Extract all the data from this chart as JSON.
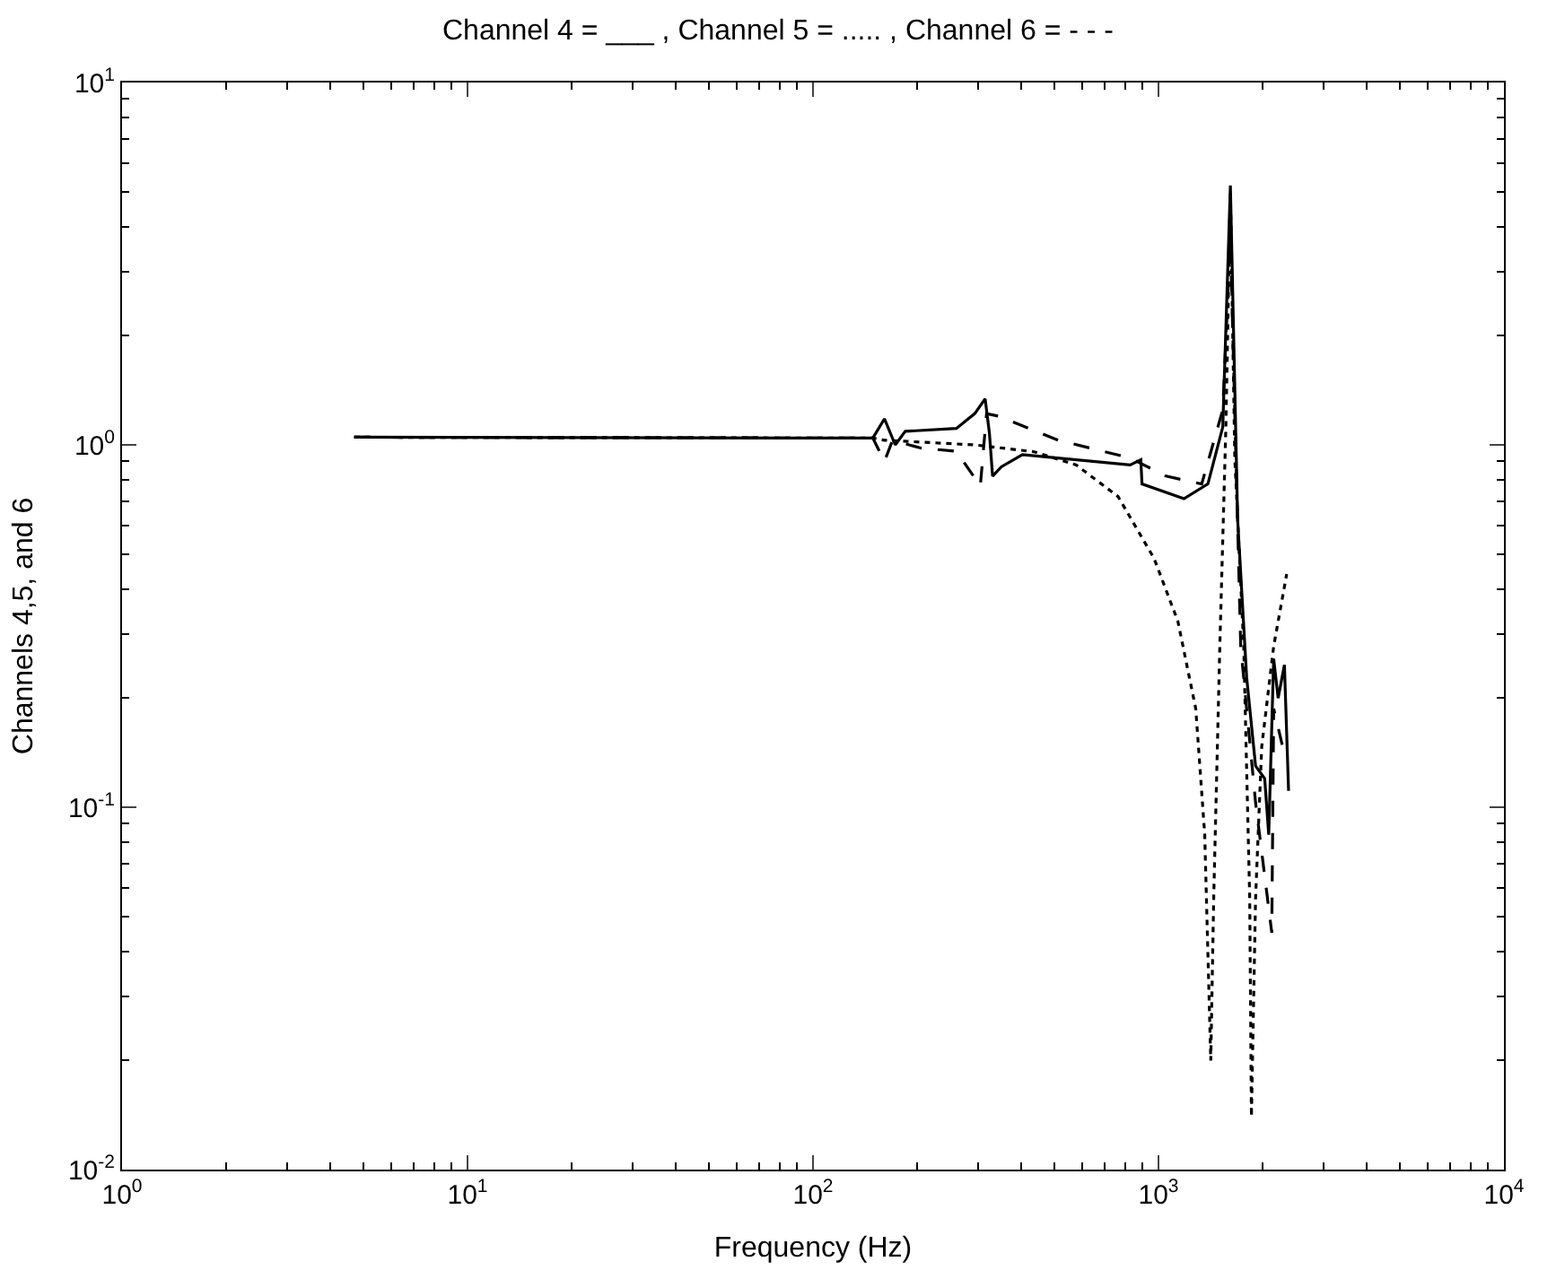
{
  "chart_data": {
    "type": "line",
    "title": "Channel 4 = ___ , Channel 5 = ..... , Channel 6 = - - -",
    "xlabel": "Frequency (Hz)",
    "ylabel": "Channels 4,5, and 6",
    "log": "xy",
    "grid": false,
    "marker": "none",
    "xlim": [
      1,
      10000
    ],
    "ylim": [
      0.01,
      10
    ],
    "xticks": [
      {
        "value": 1,
        "label": "10$^{0}$"
      },
      {
        "value": 10,
        "label": "10$^{1}$"
      },
      {
        "value": 100,
        "label": "10$^{2}$"
      },
      {
        "value": 1000,
        "label": "10$^{3}$"
      },
      {
        "value": 10000,
        "label": "10$^{4}$"
      }
    ],
    "yticks": [
      {
        "value": 0.01,
        "label": "10$^{-2}$"
      },
      {
        "value": 0.1,
        "label": "10$^{-1}$"
      },
      {
        "value": 1,
        "label": "10$^{0}$"
      },
      {
        "value": 10,
        "label": "10$^{1}$"
      }
    ],
    "series": [
      {
        "color": "#000000",
        "line_style": "solid",
        "x": [
          4.7,
          89,
          149,
          161,
          173,
          185,
          260,
          294,
          315,
          324,
          331,
          351,
          404,
          828,
          889,
          896,
          1185,
          1390,
          1535,
          1615,
          1695,
          1800,
          1910,
          2030,
          2085,
          2155,
          2220,
          2315,
          2380
        ],
        "values": [
          1.05,
          1.045,
          1.045,
          1.18,
          1.0,
          1.09,
          1.11,
          1.22,
          1.34,
          1.08,
          0.82,
          0.87,
          0.94,
          0.88,
          0.91,
          0.78,
          0.71,
          0.78,
          1.12,
          5.2,
          0.62,
          0.228,
          0.13,
          0.12,
          0.084,
          0.257,
          0.2,
          0.247,
          0.111
        ]
      },
      {
        "color": "#000000",
        "line_style": "dotted",
        "x": [
          4.7,
          89,
          149,
          161,
          294,
          437,
          578,
          764,
          971,
          1138,
          1282,
          1361,
          1417,
          1445,
          1505,
          1567,
          1615,
          1663,
          1765,
          1837,
          1858,
          1910,
          1990,
          2155,
          2350
        ],
        "values": [
          1.05,
          1.045,
          1.045,
          1.03,
          1.0,
          0.957,
          0.88,
          0.72,
          0.486,
          0.326,
          0.187,
          0.084,
          0.02,
          0.056,
          0.278,
          1.12,
          5.0,
          0.92,
          0.278,
          0.056,
          0.014,
          0.056,
          0.147,
          0.278,
          0.44
        ]
      },
      {
        "color": "#000000",
        "line_style": "dashed",
        "x": [
          4.7,
          89,
          149,
          161,
          170,
          205,
          260,
          305,
          318,
          344,
          513,
          828,
          1052,
          1334,
          1535,
          1615,
          1730,
          1910,
          2128,
          2155,
          2287
        ],
        "values": [
          1.05,
          1.045,
          1.045,
          0.9,
          1.03,
          0.98,
          0.96,
          0.77,
          1.22,
          1.2,
          1.03,
          0.92,
          0.82,
          0.78,
          1.25,
          3.7,
          0.278,
          0.103,
          0.045,
          0.187,
          0.147
        ]
      }
    ]
  }
}
